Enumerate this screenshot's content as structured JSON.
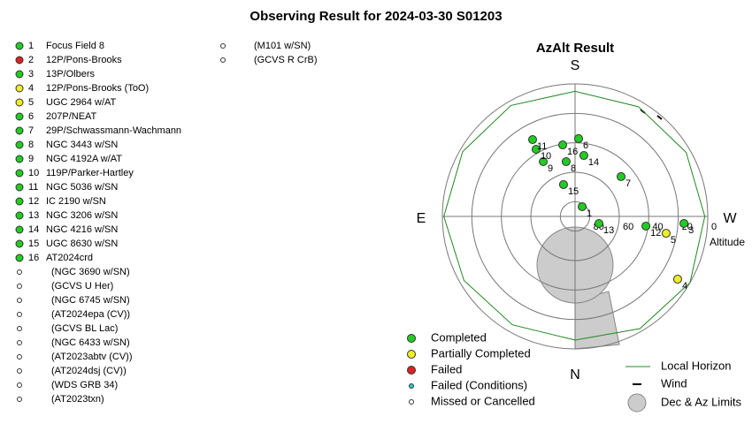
{
  "title": "Observing Result for 2024-03-30 S01203",
  "targets": [
    {
      "number": 1,
      "name": "Focus Field 8",
      "color": "#22cc22"
    },
    {
      "number": 2,
      "name": "12P/Pons-Brooks",
      "color": "#dd2222"
    },
    {
      "number": 3,
      "name": "13P/Olbers",
      "color": "#22cc22"
    },
    {
      "number": 4,
      "name": "12P/Pons-Brooks (ToO)",
      "color": "#eeee22"
    },
    {
      "number": 5,
      "name": "UGC 2964 w/AT",
      "color": "#eeee22"
    },
    {
      "number": 6,
      "name": "207P/NEAT",
      "color": "#22cc22"
    },
    {
      "number": 7,
      "name": "29P/Schwassmann-Wachmann",
      "color": "#22cc22"
    },
    {
      "number": 8,
      "name": "NGC 3443 w/SN",
      "color": "#22cc22"
    },
    {
      "number": 9,
      "name": "NGC 4192A w/AT",
      "color": "#22cc22"
    },
    {
      "number": 10,
      "name": "119P/Parker-Hartley",
      "color": "#22cc22"
    },
    {
      "number": 11,
      "name": "NGC 5036 w/SN",
      "color": "#22cc22"
    },
    {
      "number": 12,
      "name": "IC 2190 w/SN",
      "color": "#22cc22"
    },
    {
      "number": 13,
      "name": "NGC 3206 w/SN",
      "color": "#22cc22"
    },
    {
      "number": 14,
      "name": "NGC 4216 w/SN",
      "color": "#22cc22"
    },
    {
      "number": 15,
      "name": "UGC 8630 w/SN",
      "color": "#22cc22"
    },
    {
      "number": 16,
      "name": "AT2024crd",
      "color": "#22cc22"
    },
    {
      "name": "(NGC 3690 w/SN)",
      "color": "#ffffff"
    },
    {
      "name": "(GCVS U Her)",
      "color": "#ffffff"
    },
    {
      "name": "(NGC 6745 w/SN)",
      "color": "#ffffff"
    },
    {
      "name": "(AT2024epa (CV))",
      "color": "#ffffff"
    },
    {
      "name": "(GCVS BL Lac)",
      "color": "#ffffff"
    },
    {
      "name": "(NGC 6433 w/SN)",
      "color": "#ffffff"
    },
    {
      "name": "(AT2023abtv (CV))",
      "color": "#ffffff"
    },
    {
      "name": "(AT2024dsj (CV))",
      "color": "#ffffff"
    },
    {
      "name": "(WDS GRB 34)",
      "color": "#ffffff"
    },
    {
      "name": "(AT2023txn)",
      "color": "#ffffff"
    }
  ],
  "targets_col2": [
    {
      "name": "(M101 w/SN)",
      "color": "#ffffff"
    },
    {
      "name": "(GCVS R CrB)",
      "color": "#ffffff"
    }
  ],
  "chart_data": {
    "type": "polar",
    "title": "AzAlt Result",
    "directions": {
      "S": "S",
      "W": "W",
      "N": "N",
      "E": "E"
    },
    "r_label": "Altitude",
    "rlim": [
      90,
      0
    ],
    "rticks": [
      80,
      60,
      40,
      20,
      0
    ],
    "points": [
      {
        "label": 1,
        "az": 216.0,
        "alt": 81.8,
        "color": "#22cc22"
      },
      {
        "label": 3,
        "az": 273.7,
        "alt": 16.0,
        "color": "#22cc22"
      },
      {
        "label": 4,
        "az": 301.5,
        "alt": 8.4,
        "color": "#eeee22"
      },
      {
        "label": 5,
        "az": 280.5,
        "alt": 27.2,
        "color": "#eeee22"
      },
      {
        "label": 6,
        "az": 182.6,
        "alt": 37.1,
        "color": "#22cc22"
      },
      {
        "label": 7,
        "az": 229.1,
        "alt": 48.7,
        "color": "#22cc22"
      },
      {
        "label": 8,
        "az": 170.8,
        "alt": 52.3,
        "color": "#22cc22"
      },
      {
        "label": 9,
        "az": 149.9,
        "alt": 47.0,
        "color": "#22cc22"
      },
      {
        "label": 10,
        "az": 149.9,
        "alt": 37.3,
        "color": "#22cc22"
      },
      {
        "label": 11,
        "az": 151.1,
        "alt": 30.4,
        "color": "#22cc22"
      },
      {
        "label": 12,
        "az": 277.8,
        "alt": 41.5,
        "color": "#22cc22"
      },
      {
        "label": 13,
        "az": 286.5,
        "alt": 73.1,
        "color": "#22cc22"
      },
      {
        "label": 14,
        "az": 188.2,
        "alt": 48.2,
        "color": "#22cc22"
      },
      {
        "label": 15,
        "az": 160.1,
        "alt": 67.0,
        "color": "#22cc22"
      },
      {
        "label": 16,
        "az": 170.2,
        "alt": 40.7,
        "color": "#22cc22"
      }
    ],
    "horizon": {
      "name": "Local Horizon",
      "color": "#228822",
      "az": [
        0,
        30,
        60,
        90,
        120,
        150,
        180,
        210,
        240,
        270,
        300,
        330
      ],
      "alt": [
        6,
        5,
        3,
        1,
        2,
        3,
        5,
        4,
        3,
        2,
        0,
        2
      ]
    },
    "legend": [
      {
        "name": "Completed",
        "color": "#22cc22"
      },
      {
        "name": "Partially Completed",
        "color": "#eeee22"
      },
      {
        "name": "Failed",
        "color": "#dd2222"
      },
      {
        "name": "Failed (Conditions)",
        "color": "#22cccc",
        "small": true
      },
      {
        "name": "Missed or Cancelled",
        "color": "#ffffff",
        "small": true
      }
    ],
    "legend2": {
      "wind": "Wind",
      "limits": "Dec & Az Limits"
    }
  }
}
